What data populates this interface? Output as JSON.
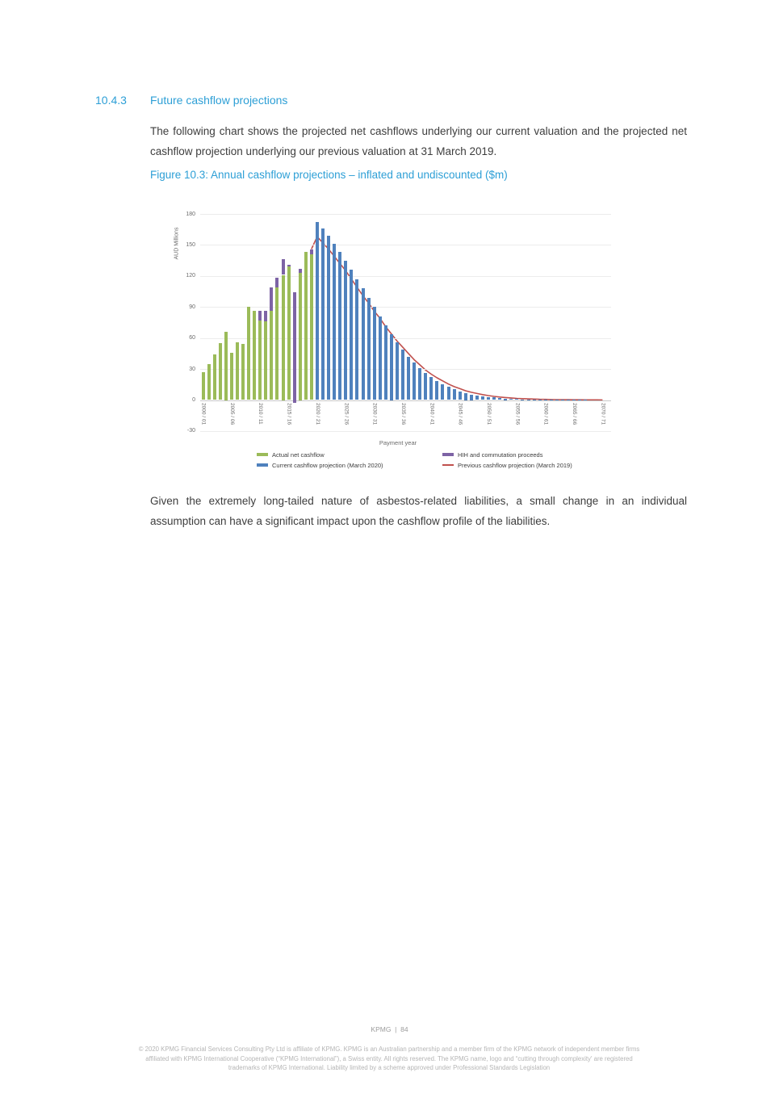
{
  "page": {
    "section_number": "10.4.3",
    "section_title": "Future cashflow projections",
    "intro_paragraph": "The following chart shows the projected net cashflows underlying our current valuation and the projected net cashflow projection underlying our previous valuation at 31 March 2019.",
    "figure_caption": "Figure 10.3: Annual cashflow projections – inflated and undiscounted ($m)",
    "body_paragraph": "Given the extremely long-tailed nature of asbestos-related liabilities, a small change in an individual assumption can have a significant impact upon the cashflow profile of the liabilities.",
    "footer": {
      "brand": "KPMG",
      "separator": "|",
      "page_number": "84",
      "copyright_lines": [
        "© 2020 KPMG Financial Services Consulting Pty Ltd is affiliate of KPMG. KPMG is an Australian partnership and a member firm of the KPMG network of independent member firms",
        "affiliated with KPMG International Cooperative (“KPMG International”), a Swiss entity. All rights reserved. The KPMG name, logo and “cutting through complexity' are registered",
        "trademarks of KPMG International. Liability limited by a scheme approved under Professional Standards Legislation"
      ]
    }
  },
  "chart_data": {
    "type": "bar",
    "title": "Annual cashflow projections – inflated and undiscounted ($m)",
    "xlabel": "Payment year",
    "ylabel": "AUD Millions",
    "ylim": [
      -30,
      180
    ],
    "yticks": [
      -30,
      0,
      30,
      60,
      90,
      120,
      150,
      180
    ],
    "grid": "horizontal",
    "legend_position": "bottom",
    "first_year": "2000 / 01",
    "last_year": "2070 / 71",
    "x_tick_labels": [
      "2000 / 01",
      "2005 / 06",
      "2010 / 11",
      "2015 / 16",
      "2020 / 21",
      "2025 / 26",
      "2030 / 31",
      "2035 / 36",
      "2040 / 41",
      "2045 / 46",
      "2050 / 51",
      "2055 / 56",
      "2060 / 61",
      "2065 / 66",
      "2070 / 71"
    ],
    "series": [
      {
        "name": "Actual net cashflow",
        "type": "bar",
        "color": "#9bbb59",
        "start_index": 0,
        "values": [
          27,
          35,
          44,
          55,
          66,
          46,
          56,
          54,
          90,
          86,
          77,
          76,
          86,
          109,
          121,
          129,
          0,
          123,
          143,
          141
        ]
      },
      {
        "name": "HIH and commutation proceeds",
        "type": "bar-stacked-top",
        "color": "#7d63a5",
        "segments": [
          {
            "index": 10,
            "from": 77,
            "to": 86
          },
          {
            "index": 11,
            "from": 76,
            "to": 86
          },
          {
            "index": 12,
            "from": 86,
            "to": 109
          },
          {
            "index": 13,
            "from": 109,
            "to": 118
          },
          {
            "index": 14,
            "from": 121,
            "to": 136
          },
          {
            "index": 15,
            "from": 129,
            "to": 131
          },
          {
            "index": 16,
            "from": -3,
            "to": 104
          },
          {
            "index": 17,
            "from": 123,
            "to": 127
          },
          {
            "index": 19,
            "from": 141,
            "to": 146
          }
        ]
      },
      {
        "name": "Current cashflow projection (March 2020)",
        "type": "bar",
        "color": "#4f81bd",
        "start_index": 20,
        "values": [
          172,
          166,
          159,
          151,
          143,
          135,
          126,
          117,
          108,
          99,
          90,
          81,
          72,
          64,
          56,
          49,
          42,
          36,
          31,
          26,
          22,
          18.5,
          15.5,
          13,
          10.5,
          8.5,
          7,
          5.5,
          4.5,
          3.6,
          3,
          2.4,
          2,
          1.6,
          1.3,
          1,
          0.8,
          0.6,
          0.5,
          0.4,
          0.3,
          0.25,
          0.2,
          0.2,
          0.15,
          0.1,
          0.1,
          0.1,
          0.05,
          0.05,
          0
        ]
      },
      {
        "name": "Previous cashflow projection (March 2019)",
        "type": "line",
        "color": "#c0504d",
        "start_index": 19,
        "values": [
          146,
          158,
          152,
          146,
          139,
          132,
          125,
          117,
          109,
          101,
          94,
          86,
          79,
          71,
          64,
          57,
          51,
          45,
          39,
          34,
          29,
          25,
          21.5,
          18.5,
          15.5,
          13,
          11,
          9,
          7.5,
          6.3,
          5.2,
          4.3,
          3.5,
          2.9,
          2.4,
          2,
          1.6,
          1.3,
          1.1,
          0.9,
          0.7,
          0.6,
          0.5,
          0.4,
          0.35,
          0.3,
          0.25,
          0.2,
          0.18,
          0.15,
          0.12,
          0.1
        ]
      }
    ]
  }
}
